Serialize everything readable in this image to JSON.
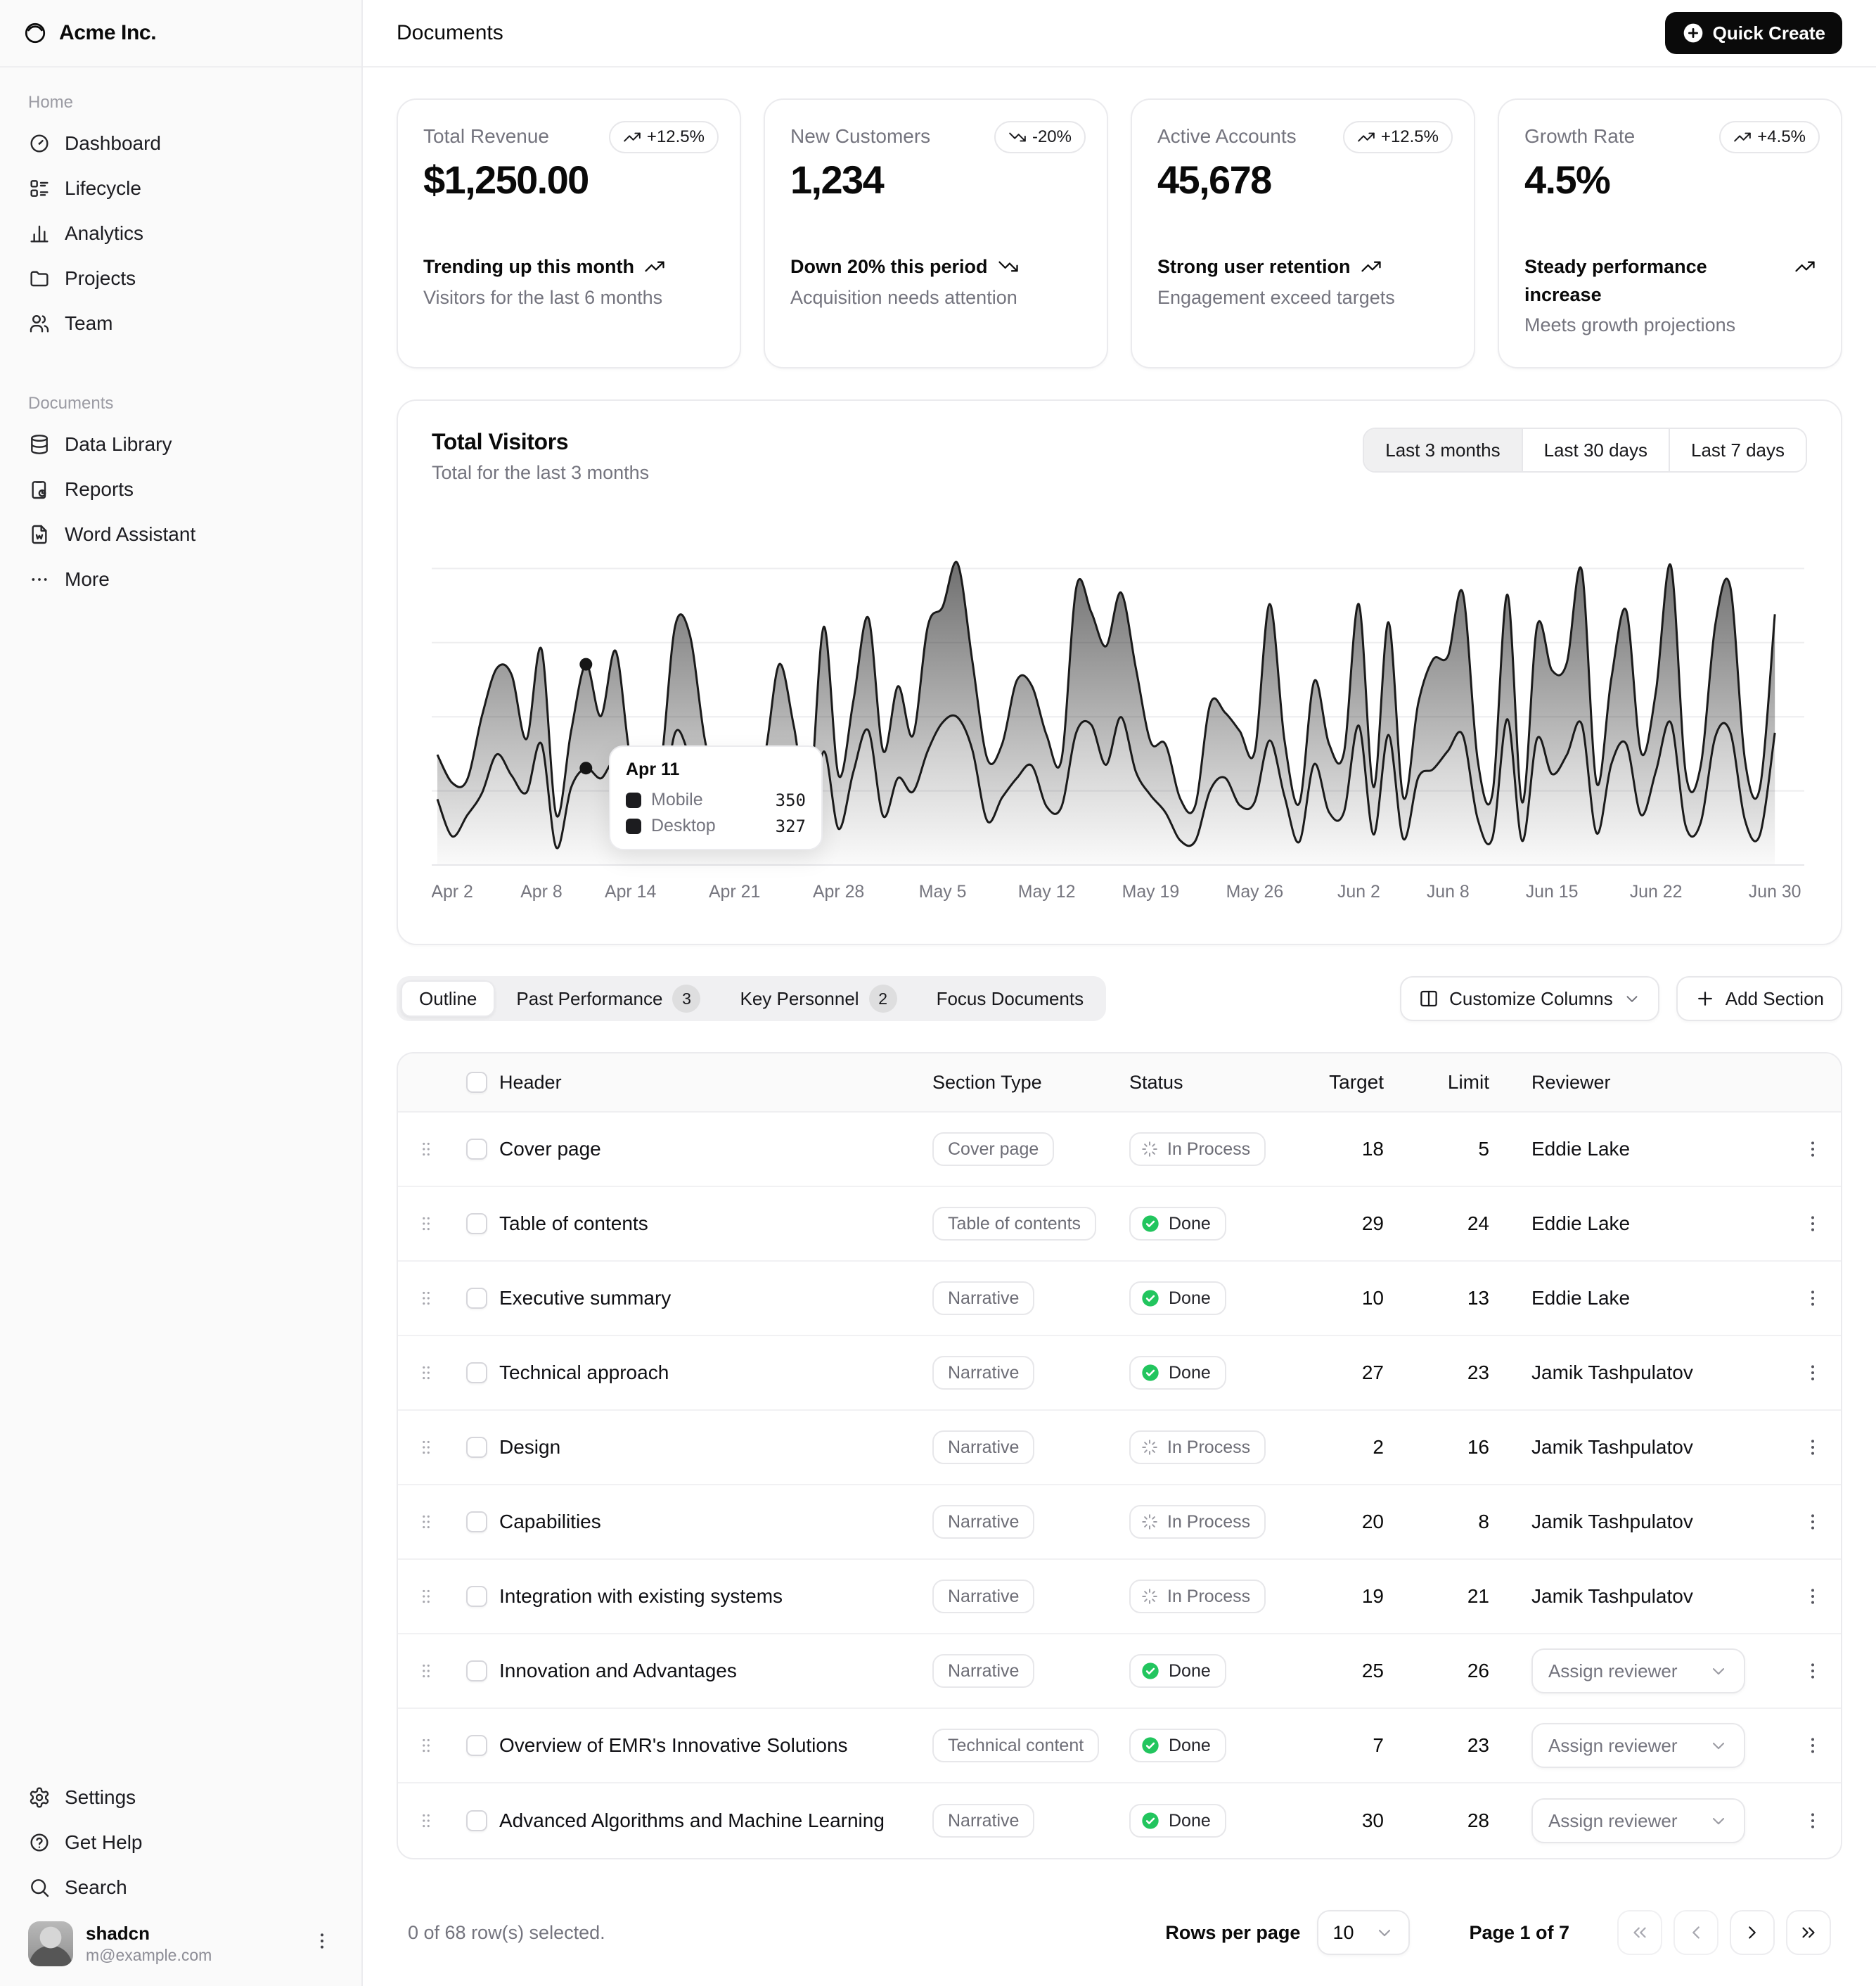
{
  "colors": {
    "accent": "#0a0a0a",
    "green": "#22c55e",
    "muted": "#74747e",
    "border": "#e7e7ea",
    "series_mobile": "#1c1c1f",
    "series_desktop": "#1c1c1f"
  },
  "brand": {
    "name": "Acme Inc.",
    "logo_icon": "logo"
  },
  "topbar": {
    "title": "Documents",
    "quick_create_label": "Quick Create",
    "quick_create_icon": "plus-circle-filled"
  },
  "sidebar": {
    "sections": [
      {
        "label": "Home",
        "items": [
          {
            "icon": "dashboard",
            "label": "Dashboard"
          },
          {
            "icon": "lifecycle",
            "label": "Lifecycle"
          },
          {
            "icon": "analytics",
            "label": "Analytics"
          },
          {
            "icon": "projects",
            "label": "Projects"
          },
          {
            "icon": "team",
            "label": "Team"
          }
        ]
      },
      {
        "label": "Documents",
        "items": [
          {
            "icon": "database",
            "label": "Data Library"
          },
          {
            "icon": "reports",
            "label": "Reports"
          },
          {
            "icon": "word-assistant",
            "label": "Word Assistant"
          },
          {
            "icon": "more",
            "label": "More"
          }
        ]
      }
    ],
    "footer_items": [
      {
        "icon": "settings",
        "label": "Settings"
      },
      {
        "icon": "help",
        "label": "Get Help"
      },
      {
        "icon": "search",
        "label": "Search"
      }
    ],
    "user": {
      "name": "shadcn",
      "email": "m@example.com"
    }
  },
  "stats": [
    {
      "title": "Total Revenue",
      "value": "$1,250.00",
      "badge": "+12.5%",
      "trend": "up",
      "line1": "Trending up this month",
      "line2": "Visitors for the last 6 months"
    },
    {
      "title": "New Customers",
      "value": "1,234",
      "badge": "-20%",
      "trend": "down",
      "line1": "Down 20% this period",
      "line2": "Acquisition needs attention"
    },
    {
      "title": "Active Accounts",
      "value": "45,678",
      "badge": "+12.5%",
      "trend": "up",
      "line1": "Strong user retention",
      "line2": "Engagement exceed targets"
    },
    {
      "title": "Growth Rate",
      "value": "4.5%",
      "badge": "+4.5%",
      "trend": "up",
      "line1": "Steady performance increase",
      "line2": "Meets growth projections"
    }
  ],
  "chart": {
    "title": "Total Visitors",
    "subtitle": "Total for the last 3 months",
    "ranges": [
      "Last 3 months",
      "Last 30 days",
      "Last 7 days"
    ],
    "active_range": 0,
    "tooltip": {
      "date": "Apr 11",
      "index": 10,
      "rows": [
        {
          "label": "Mobile",
          "value": "350"
        },
        {
          "label": "Desktop",
          "value": "327"
        }
      ]
    },
    "x_ticks": [
      {
        "label": "Apr 2",
        "index": 1
      },
      {
        "label": "Apr 8",
        "index": 7
      },
      {
        "label": "Apr 14",
        "index": 13
      },
      {
        "label": "Apr 21",
        "index": 20
      },
      {
        "label": "Apr 28",
        "index": 27
      },
      {
        "label": "May 5",
        "index": 34
      },
      {
        "label": "May 12",
        "index": 41
      },
      {
        "label": "May 19",
        "index": 48
      },
      {
        "label": "May 26",
        "index": 55
      },
      {
        "label": "Jun 2",
        "index": 62
      },
      {
        "label": "Jun 8",
        "index": 68
      },
      {
        "label": "Jun 15",
        "index": 75
      },
      {
        "label": "Jun 22",
        "index": 82
      },
      {
        "label": "Jun 30",
        "index": 90
      }
    ]
  },
  "chart_data": {
    "type": "area",
    "stacked": true,
    "title": "Total Visitors",
    "xlabel": "",
    "ylabel": "",
    "ylim": [
      0,
      1018
    ],
    "grid_ticks": [
      250,
      500,
      750,
      1000
    ],
    "legend_position": "none",
    "x_range": [
      "Apr 1",
      "Jun 30"
    ],
    "days": 91,
    "series": [
      {
        "name": "Desktop",
        "values": [
          222,
          97,
          167,
          242,
          373,
          301,
          245,
          409,
          59,
          261,
          327,
          292,
          342,
          137,
          120,
          138,
          446,
          364,
          243,
          89,
          137,
          224,
          138,
          387,
          215,
          75,
          383,
          122,
          315,
          454,
          165,
          293,
          247,
          385,
          481,
          498,
          388,
          149,
          227,
          293,
          335,
          197,
          197,
          448,
          473,
          338,
          499,
          315,
          235,
          177,
          82,
          81,
          252,
          294,
          201,
          213,
          420,
          233,
          78,
          340,
          178,
          178,
          470,
          103,
          439,
          88,
          294,
          323,
          385,
          438,
          155,
          92,
          492,
          81,
          426,
          307,
          371,
          475,
          107,
          341,
          408,
          169,
          317,
          480,
          132,
          141,
          434,
          448,
          149,
          103,
          446
        ]
      },
      {
        "name": "Mobile",
        "values": [
          150,
          180,
          120,
          260,
          290,
          340,
          180,
          320,
          110,
          190,
          350,
          210,
          380,
          220,
          170,
          190,
          360,
          410,
          180,
          150,
          200,
          170,
          230,
          290,
          250,
          130,
          420,
          180,
          240,
          380,
          220,
          310,
          190,
          420,
          390,
          520,
          300,
          210,
          180,
          330,
          270,
          240,
          160,
          490,
          380,
          400,
          420,
          350,
          180,
          230,
          140,
          120,
          290,
          220,
          250,
          170,
          460,
          190,
          130,
          280,
          230,
          200,
          410,
          160,
          380,
          140,
          250,
          370,
          320,
          480,
          200,
          150,
          420,
          130,
          380,
          350,
          310,
          520,
          170,
          290,
          450,
          210,
          270,
          530,
          180,
          190,
          380,
          490,
          200,
          160,
          400
        ]
      }
    ]
  },
  "tabs": [
    {
      "label": "Outline",
      "count": null,
      "active": true
    },
    {
      "label": "Past Performance",
      "count": "3",
      "active": false
    },
    {
      "label": "Key Personnel",
      "count": "2",
      "active": false
    },
    {
      "label": "Focus Documents",
      "count": null,
      "active": false
    }
  ],
  "toolbar": {
    "customize_label": "Customize Columns",
    "add_label": "Add Section"
  },
  "table": {
    "columns": [
      "Header",
      "Section Type",
      "Status",
      "Target",
      "Limit",
      "Reviewer"
    ],
    "assign_label": "Assign reviewer",
    "rows": [
      {
        "header": "Cover page",
        "type": "Cover page",
        "status": "In Process",
        "target": "18",
        "limit": "5",
        "reviewer": "Eddie Lake"
      },
      {
        "header": "Table of contents",
        "type": "Table of contents",
        "status": "Done",
        "target": "29",
        "limit": "24",
        "reviewer": "Eddie Lake"
      },
      {
        "header": "Executive summary",
        "type": "Narrative",
        "status": "Done",
        "target": "10",
        "limit": "13",
        "reviewer": "Eddie Lake"
      },
      {
        "header": "Technical approach",
        "type": "Narrative",
        "status": "Done",
        "target": "27",
        "limit": "23",
        "reviewer": "Jamik Tashpulatov"
      },
      {
        "header": "Design",
        "type": "Narrative",
        "status": "In Process",
        "target": "2",
        "limit": "16",
        "reviewer": "Jamik Tashpulatov"
      },
      {
        "header": "Capabilities",
        "type": "Narrative",
        "status": "In Process",
        "target": "20",
        "limit": "8",
        "reviewer": "Jamik Tashpulatov"
      },
      {
        "header": "Integration with existing systems",
        "type": "Narrative",
        "status": "In Process",
        "target": "19",
        "limit": "21",
        "reviewer": "Jamik Tashpulatov"
      },
      {
        "header": "Innovation and Advantages",
        "type": "Narrative",
        "status": "Done",
        "target": "25",
        "limit": "26",
        "reviewer": null
      },
      {
        "header": "Overview of EMR's Innovative Solutions",
        "type": "Technical content",
        "status": "Done",
        "target": "7",
        "limit": "23",
        "reviewer": null
      },
      {
        "header": "Advanced Algorithms and Machine Learning",
        "type": "Narrative",
        "status": "Done",
        "target": "30",
        "limit": "28",
        "reviewer": null
      }
    ]
  },
  "pagination": {
    "selected_text": "0 of 68 row(s) selected.",
    "rows_per_page_label": "Rows per page",
    "rows_per_page_value": "10",
    "page_text": "Page 1 of 7"
  }
}
